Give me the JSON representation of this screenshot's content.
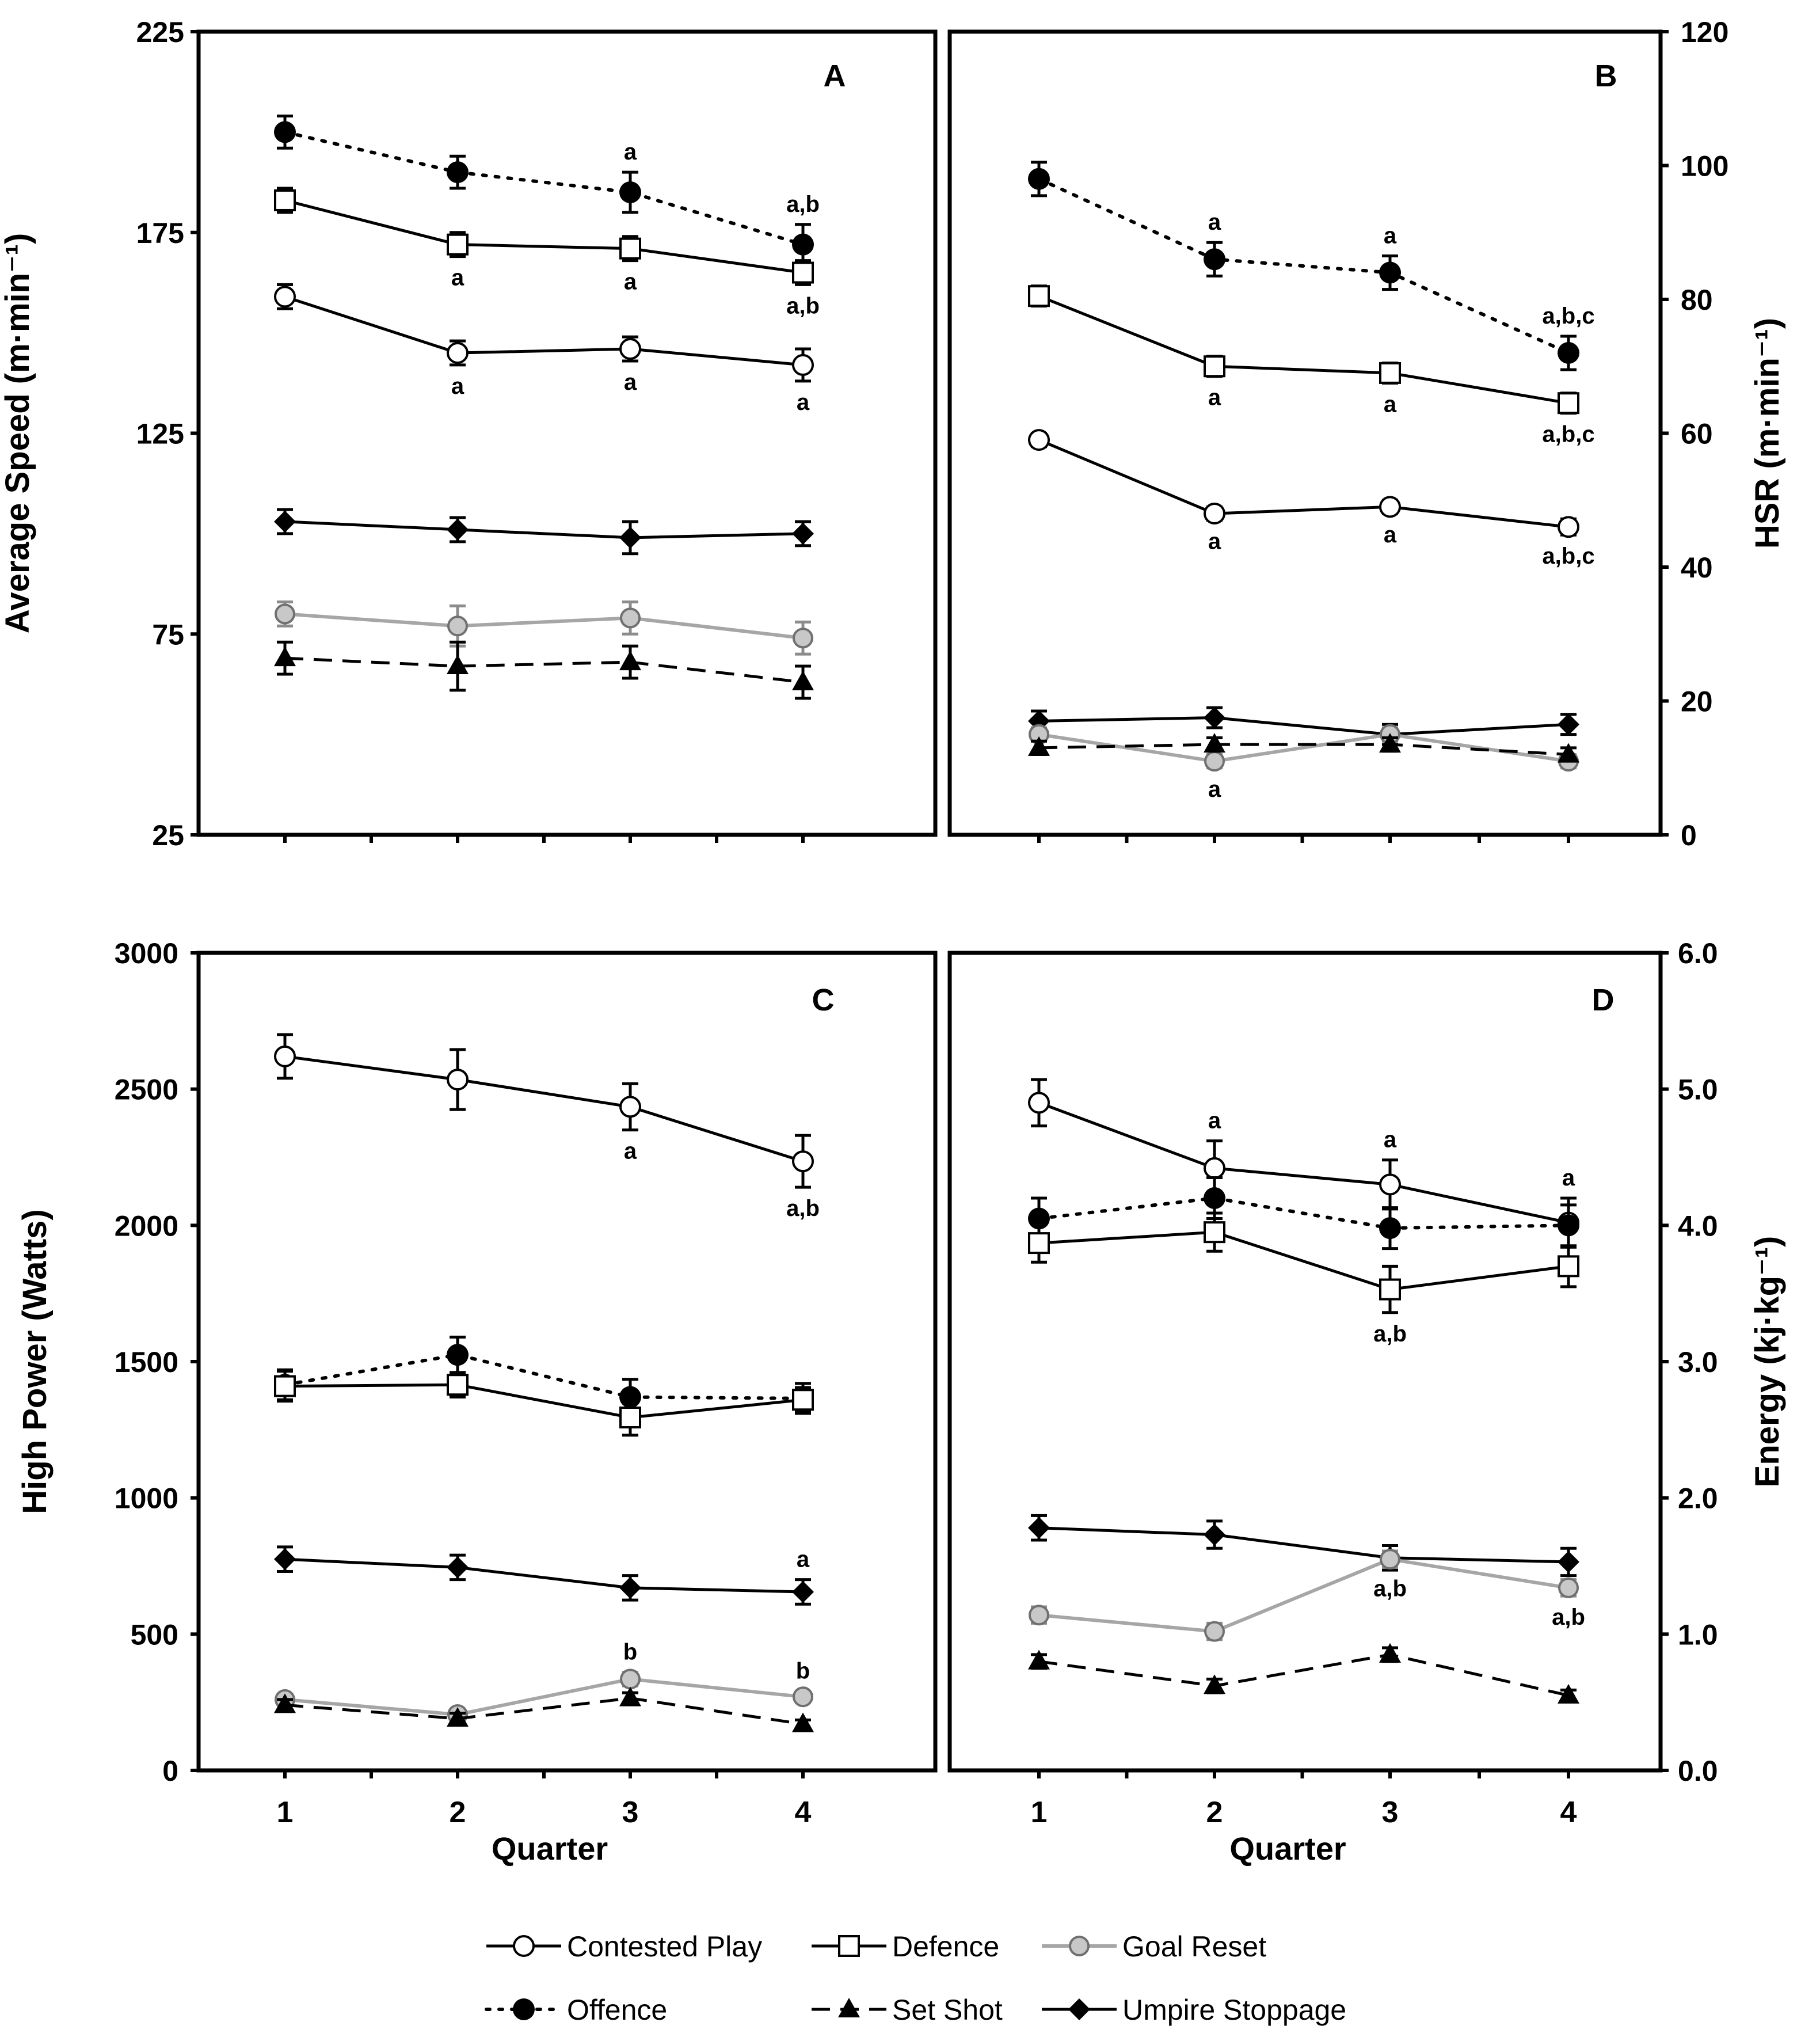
{
  "chart_data": [
    {
      "panel": "A",
      "type": "line",
      "xlabel": "",
      "ylabel": "Average Speed (m·min⁻¹)",
      "x": [
        1,
        2,
        3,
        4
      ],
      "ylim": [
        25,
        225
      ],
      "yticks": [
        25,
        75,
        125,
        175,
        225
      ],
      "series": [
        {
          "name": "Offence",
          "values": [
            200,
            190,
            185,
            172
          ],
          "errors": [
            4,
            4,
            5,
            5
          ],
          "annotations": [
            "",
            "",
            "a",
            "a,b"
          ]
        },
        {
          "name": "Defence",
          "values": [
            183,
            172,
            171,
            165
          ],
          "errors": [
            3,
            3,
            3,
            3
          ],
          "annotations": [
            "",
            "a",
            "a",
            "a,b"
          ]
        },
        {
          "name": "Contested Play",
          "values": [
            159,
            145,
            146,
            142
          ],
          "errors": [
            3,
            3,
            3,
            4
          ],
          "annotations": [
            "",
            "a",
            "a",
            "a"
          ]
        },
        {
          "name": "Umpire Stoppage",
          "values": [
            103,
            101,
            99,
            100
          ],
          "errors": [
            3,
            3,
            4,
            3
          ],
          "annotations": [
            "",
            "",
            "",
            ""
          ]
        },
        {
          "name": "Goal Reset",
          "values": [
            80,
            77,
            79,
            74
          ],
          "errors": [
            3,
            5,
            4,
            4
          ],
          "annotations": [
            "",
            "",
            "",
            ""
          ]
        },
        {
          "name": "Set Shot",
          "values": [
            69,
            67,
            68,
            63
          ],
          "errors": [
            4,
            6,
            4,
            4
          ],
          "annotations": [
            "",
            "",
            "",
            ""
          ]
        }
      ]
    },
    {
      "panel": "B",
      "type": "line",
      "xlabel": "",
      "ylabel": "HSR (m·min⁻¹)",
      "x": [
        1,
        2,
        3,
        4
      ],
      "ylim": [
        0,
        120
      ],
      "yticks": [
        0,
        20,
        40,
        60,
        80,
        100,
        120
      ],
      "series": [
        {
          "name": "Offence",
          "values": [
            98,
            86,
            84,
            72
          ],
          "errors": [
            2.5,
            2.5,
            2.5,
            2.5
          ],
          "annotations": [
            "",
            "a",
            "a",
            "a,b,c"
          ]
        },
        {
          "name": "Defence",
          "values": [
            80.5,
            70,
            69,
            64.5
          ],
          "errors": [
            1.5,
            1.5,
            1.5,
            1.5
          ],
          "annotations": [
            "",
            "a",
            "a",
            "a,b,c"
          ]
        },
        {
          "name": "Contested Play",
          "values": [
            59,
            48,
            49,
            46
          ],
          "errors": [
            1,
            1,
            1,
            1.2
          ],
          "annotations": [
            "",
            "a",
            "a",
            "a,b,c"
          ]
        },
        {
          "name": "Umpire Stoppage",
          "values": [
            17,
            17.5,
            15,
            16.5
          ],
          "errors": [
            1.5,
            1.5,
            1.5,
            1.5
          ],
          "annotations": [
            "",
            "",
            "",
            ""
          ]
        },
        {
          "name": "Goal Reset",
          "values": [
            15,
            11,
            15,
            11
          ],
          "errors": [
            1,
            1,
            1,
            1
          ],
          "annotations": [
            "",
            "a",
            "",
            ""
          ]
        },
        {
          "name": "Set Shot",
          "values": [
            13,
            13.5,
            13.5,
            12
          ],
          "errors": [
            1,
            1,
            1,
            1
          ],
          "annotations": [
            "",
            "",
            "",
            ""
          ]
        }
      ]
    },
    {
      "panel": "C",
      "type": "line",
      "xlabel": "Quarter",
      "ylabel": "High Power (Watts)",
      "x": [
        1,
        2,
        3,
        4
      ],
      "ylim": [
        0,
        3000
      ],
      "yticks": [
        0,
        500,
        1000,
        1500,
        2000,
        2500,
        3000
      ],
      "series": [
        {
          "name": "Contested Play",
          "values": [
            2620,
            2535,
            2435,
            2235
          ],
          "errors": [
            80,
            110,
            85,
            95
          ],
          "annotations": [
            "",
            "",
            "a",
            "a,b"
          ]
        },
        {
          "name": "Offence",
          "values": [
            1415,
            1525,
            1370,
            1365
          ],
          "errors": [
            55,
            65,
            65,
            55
          ],
          "annotations": [
            "",
            "",
            "",
            ""
          ]
        },
        {
          "name": "Defence",
          "values": [
            1410,
            1415,
            1295,
            1360
          ],
          "errors": [
            55,
            45,
            65,
            45
          ],
          "annotations": [
            "",
            "",
            "",
            ""
          ]
        },
        {
          "name": "Umpire Stoppage",
          "values": [
            775,
            745,
            670,
            655
          ],
          "errors": [
            45,
            45,
            45,
            45
          ],
          "annotations": [
            "",
            "",
            "",
            "a"
          ]
        },
        {
          "name": "Goal Reset",
          "values": [
            260,
            205,
            335,
            270
          ],
          "errors": [
            20,
            20,
            25,
            20
          ],
          "annotations": [
            "",
            "",
            "b",
            "b"
          ]
        },
        {
          "name": "Set Shot",
          "values": [
            240,
            190,
            265,
            170
          ],
          "errors": [
            20,
            20,
            20,
            15
          ],
          "annotations": [
            "",
            "",
            "",
            ""
          ]
        }
      ]
    },
    {
      "panel": "D",
      "type": "line",
      "xlabel": "Quarter",
      "ylabel": "Energy (kj·kg⁻¹)",
      "x": [
        1,
        2,
        3,
        4
      ],
      "ylim": [
        0,
        6
      ],
      "yticks": [
        "0.0",
        "1.0",
        "2.0",
        "3.0",
        "4.0",
        "5.0",
        "6.0"
      ],
      "series": [
        {
          "name": "Contested Play",
          "values": [
            4.9,
            4.42,
            4.3,
            4.02
          ],
          "errors": [
            0.17,
            0.2,
            0.18,
            0.18
          ],
          "annotations": [
            "",
            "a",
            "a",
            "a"
          ]
        },
        {
          "name": "Offence",
          "values": [
            4.05,
            4.2,
            3.98,
            4.0
          ],
          "errors": [
            0.15,
            0.15,
            0.15,
            0.15
          ],
          "annotations": [
            "",
            "",
            "",
            ""
          ]
        },
        {
          "name": "Defence",
          "values": [
            3.87,
            3.95,
            3.53,
            3.7
          ],
          "errors": [
            0.14,
            0.14,
            0.17,
            0.15
          ],
          "annotations": [
            "",
            "",
            "a,b",
            ""
          ]
        },
        {
          "name": "Umpire Stoppage",
          "values": [
            1.78,
            1.73,
            1.56,
            1.53
          ],
          "errors": [
            0.09,
            0.1,
            0.09,
            0.1
          ],
          "annotations": [
            "",
            "",
            "",
            ""
          ]
        },
        {
          "name": "Goal Reset",
          "values": [
            1.14,
            1.02,
            1.55,
            1.34
          ],
          "errors": [
            0.06,
            0.06,
            0.06,
            0.06
          ],
          "annotations": [
            "",
            "",
            "a,b",
            "a,b"
          ]
        },
        {
          "name": "Set Shot",
          "values": [
            0.8,
            0.62,
            0.85,
            0.55
          ],
          "errors": [
            0.05,
            0.05,
            0.05,
            0.04
          ],
          "annotations": [
            "",
            "",
            "",
            ""
          ]
        }
      ]
    }
  ],
  "legend": {
    "items": [
      "Contested Play",
      "Defence",
      "Goal Reset",
      "Offence",
      "Set Shot",
      "Umpire Stoppage"
    ]
  },
  "styles": {
    "Contested Play": {
      "marker": "circle-open",
      "color": "#000000",
      "line": "solid",
      "width": 5
    },
    "Defence": {
      "marker": "square-open",
      "color": "#000000",
      "line": "solid",
      "width": 5
    },
    "Goal Reset": {
      "marker": "circle-grey",
      "color": "#a6a6a6",
      "line": "solid",
      "width": 6
    },
    "Offence": {
      "marker": "circle-filled",
      "color": "#000000",
      "line": "dotted",
      "width": 6
    },
    "Set Shot": {
      "marker": "triangle-filled",
      "color": "#000000",
      "line": "dashed",
      "width": 5
    },
    "Umpire Stoppage": {
      "marker": "diamond-filled",
      "color": "#000000",
      "line": "solid",
      "width": 5
    }
  }
}
